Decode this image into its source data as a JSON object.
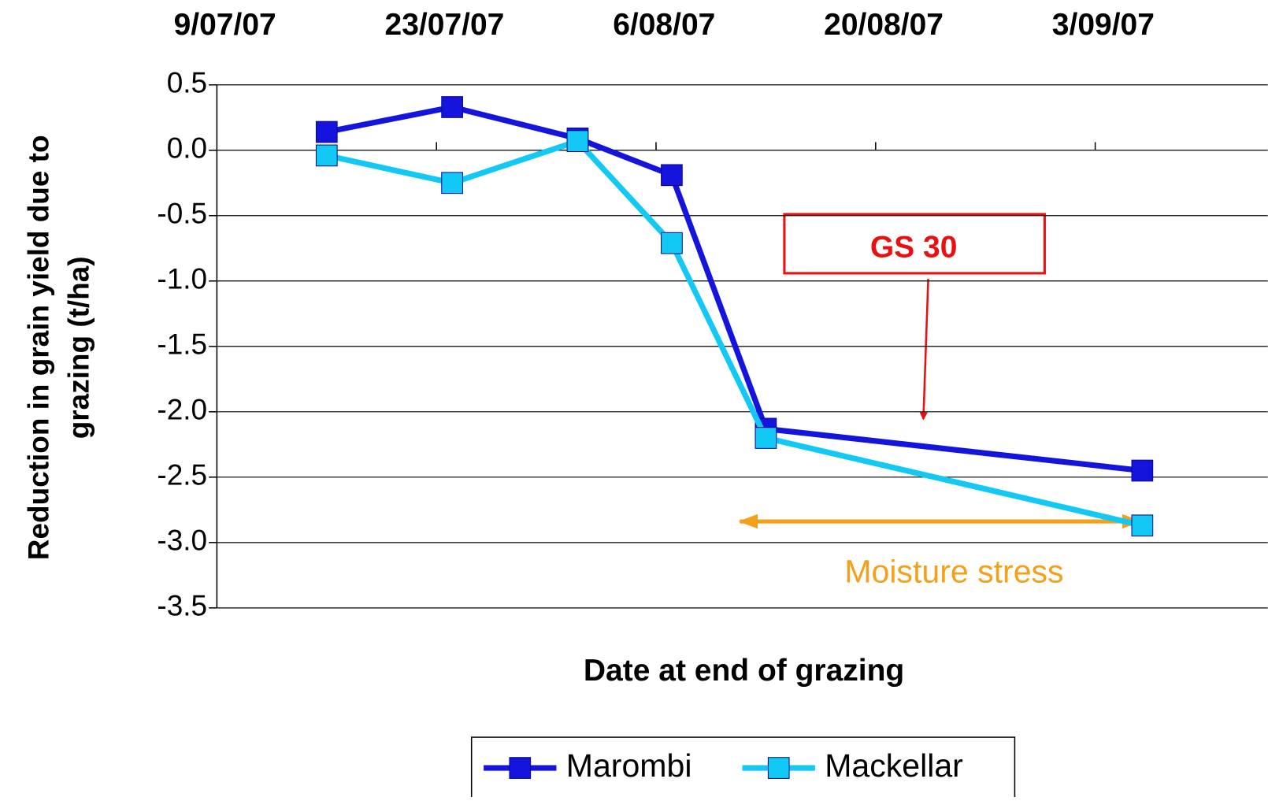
{
  "chart_data": {
    "type": "line",
    "xlabel": "Date at end of grazing",
    "ylabel": [
      "Reduction in grain yield due to",
      "grazing (t/ha)"
    ],
    "x": [
      "2007-07-16",
      "2007-07-24",
      "2007-08-01",
      "2007-08-07",
      "2007-08-13",
      "2007-09-06"
    ],
    "series": [
      {
        "name": "Marombi",
        "color": "#1414dc",
        "values": [
          0.14,
          0.33,
          0.09,
          -0.19,
          -2.13,
          -2.45
        ]
      },
      {
        "name": "Mackellar",
        "color": "#12c8f5",
        "values": [
          -0.04,
          -0.25,
          0.07,
          -0.71,
          -2.2,
          -2.87
        ]
      }
    ],
    "xlim": [
      "2007-07-09",
      "2007-09-14"
    ],
    "xticks": [
      {
        "value": "2007-07-09",
        "label": "9/07/07"
      },
      {
        "value": "2007-07-23",
        "label": "23/07/07"
      },
      {
        "value": "2007-08-06",
        "label": "6/08/07"
      },
      {
        "value": "2007-08-20",
        "label": "20/08/07"
      },
      {
        "value": "2007-09-03",
        "label": "3/09/07"
      }
    ],
    "ylim": [
      -3.5,
      0.5
    ],
    "yticks": [
      0.5,
      {
        "value": 0,
        "label": "0.0"
      },
      -0.5,
      {
        "value": -1,
        "label": "-1.0"
      },
      -1.5,
      {
        "value": -2,
        "label": "-2.0"
      },
      -2.5,
      {
        "value": -3,
        "label": "-3.0"
      },
      -3.5
    ],
    "grid": true,
    "legend": "bottom",
    "annotations": [
      "GS 30",
      "Moisture stress"
    ]
  }
}
